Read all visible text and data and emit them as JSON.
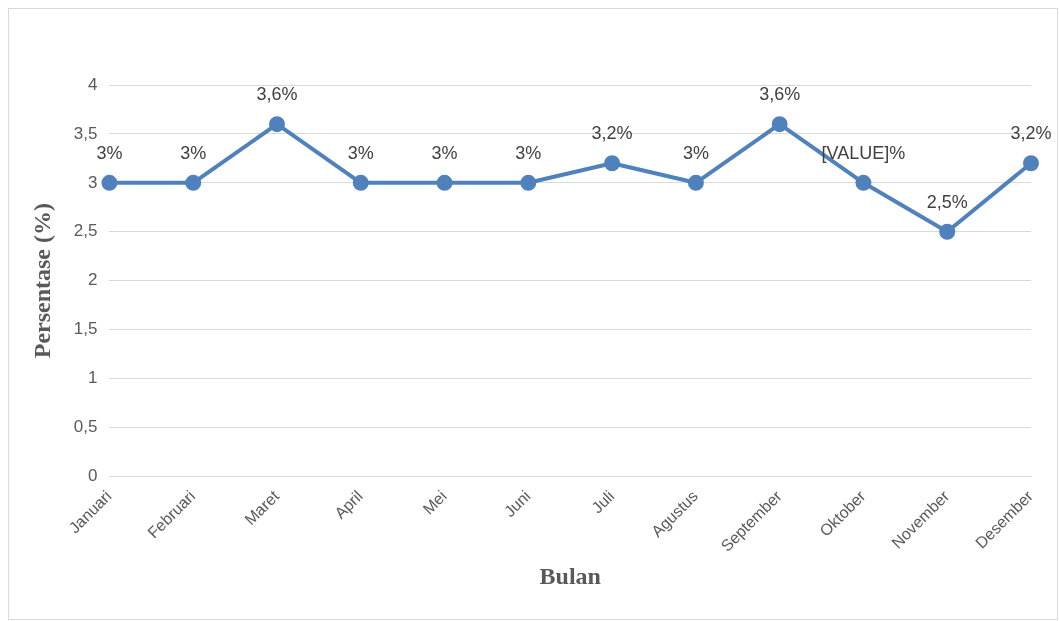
{
  "chart_data": {
    "type": "line",
    "xlabel": "Bulan",
    "ylabel": "Persentase (%)",
    "categories": [
      "Januari",
      "Februari",
      "Maret",
      "April",
      "Mei",
      "Juni",
      "Juli",
      "Agustus",
      "September",
      "Oktober",
      "November",
      "Desember"
    ],
    "series": [
      {
        "color": "#4f81bd",
        "values": [
          3,
          3,
          3.6,
          3,
          3,
          3,
          3.2,
          3,
          3.6,
          3,
          2.5,
          3.2
        ],
        "value_labels": [
          "3%",
          "3%",
          "3,6%",
          "3%",
          "3%",
          "3%",
          "3,2%",
          "3%",
          "3,6%",
          "[VALUE]%",
          "2,5%",
          "3,2%"
        ]
      }
    ],
    "ylim": [
      0,
      4
    ],
    "yticks": [
      0,
      {
        "value": 0.5,
        "label": "0,5"
      },
      1,
      {
        "value": 1.5,
        "label": "1,5"
      },
      2,
      {
        "value": 2.5,
        "label": "2,5"
      },
      3,
      {
        "value": 3.5,
        "label": "3,5"
      },
      4
    ],
    "grid": "y",
    "legend": false,
    "marker": "circle",
    "line_style": "solid"
  }
}
